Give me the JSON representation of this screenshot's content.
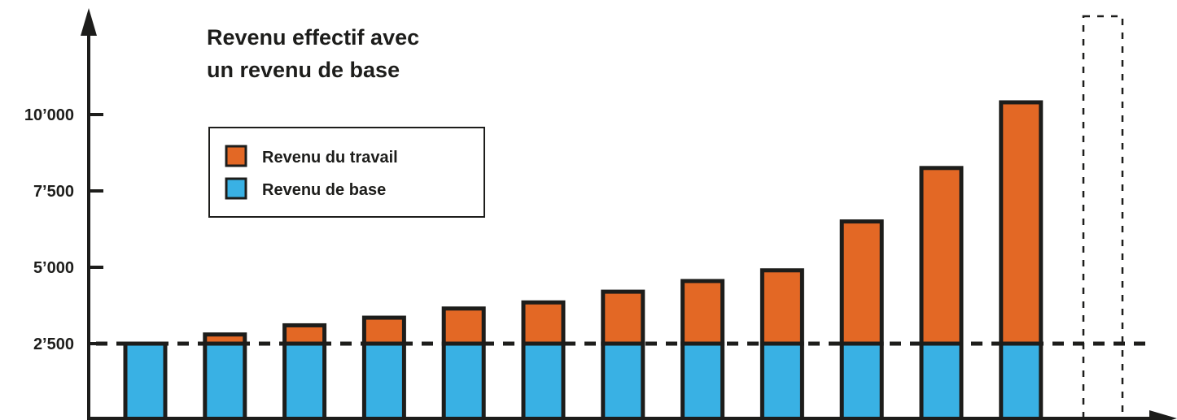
{
  "chart_data": {
    "type": "bar",
    "stacked": true,
    "title_lines": [
      "Revenu effectif avec",
      "un revenu de base"
    ],
    "yticks": [
      {
        "value": 2500,
        "label": "2’500"
      },
      {
        "value": 5000,
        "label": "5’000"
      },
      {
        "value": 7500,
        "label": "7’500"
      },
      {
        "value": 10000,
        "label": "10’000"
      }
    ],
    "ylim": [
      0,
      13000
    ],
    "legend": {
      "position": "top-left",
      "items": [
        {
          "name": "Revenu du travail",
          "color": "#e36825"
        },
        {
          "name": "Revenu de base",
          "color": "#39b1e4"
        }
      ]
    },
    "basic_income_line": 2500,
    "series": [
      {
        "name": "Revenu de base",
        "color": "#39b1e4",
        "values": [
          2500,
          2500,
          2500,
          2500,
          2500,
          2500,
          2500,
          2500,
          2500,
          2500,
          2500,
          2500
        ]
      },
      {
        "name": "Revenu du travail",
        "color": "#e36825",
        "values": [
          0,
          300,
          600,
          850,
          1150,
          1350,
          1700,
          2050,
          2400,
          4000,
          5750,
          7900
        ]
      }
    ],
    "empty_slot_after_last": true,
    "colors": {
      "axis": "#1d1d1b",
      "outline": "#1d1d1b"
    }
  }
}
